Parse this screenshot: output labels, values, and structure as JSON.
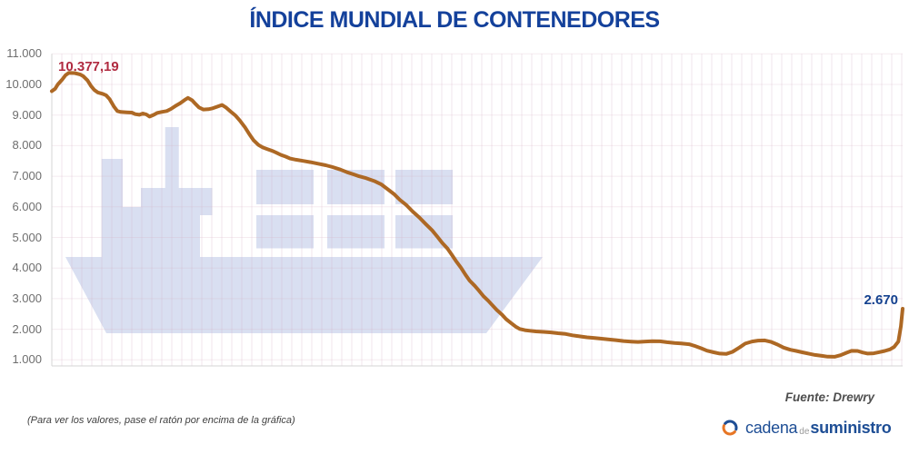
{
  "title": "ÍNDICE MUNDIAL DE CONTENEDORES",
  "annotations": {
    "peak": "10.377,19",
    "last": "2.670"
  },
  "footer": {
    "note": "(Para ver los valores, pase el ratón por encima de la gráfica)",
    "source": "Fuente: Drewry",
    "logo": {
      "part1": "cadena",
      "part2": "de",
      "part3": "suministro"
    }
  },
  "colors": {
    "title": "#14419b",
    "line": "#ad6824",
    "peak_label": "#b02a40",
    "last_label": "#14418f",
    "ship_watermark": "#d9dff1",
    "axis": "#d4d4d4",
    "y_tick_text": "#6e6e6e",
    "logo_blue": "#1e4e95",
    "logo_orange": "#e77625"
  },
  "chart_data": {
    "type": "line",
    "title": "ÍNDICE MUNDIAL DE CONTENEDORES",
    "xlabel": "",
    "ylabel": "",
    "x_tick_labels_visible": false,
    "y_ticks": [
      "11.000",
      "10.000",
      "9.000",
      "8.000",
      "7.000",
      "6.000",
      "5.000",
      "4.000",
      "3.000",
      "2.000",
      "1.000"
    ],
    "y_tick_values": [
      11000,
      10000,
      9000,
      8000,
      7000,
      6000,
      5000,
      4000,
      3000,
      2000,
      1000
    ],
    "ylim": [
      800,
      11000
    ],
    "grid": true,
    "legend": "none",
    "source": "Drewry",
    "peak_value": 10377.19,
    "last_value": 2670,
    "series": [
      {
        "name": "Índice mundial de contenedores",
        "points": [
          [
            0.0,
            9780
          ],
          [
            0.004,
            9860
          ],
          [
            0.007,
            10000
          ],
          [
            0.012,
            10150
          ],
          [
            0.016,
            10300
          ],
          [
            0.02,
            10377
          ],
          [
            0.027,
            10370
          ],
          [
            0.033,
            10330
          ],
          [
            0.037,
            10270
          ],
          [
            0.042,
            10130
          ],
          [
            0.046,
            9950
          ],
          [
            0.05,
            9820
          ],
          [
            0.054,
            9740
          ],
          [
            0.06,
            9690
          ],
          [
            0.064,
            9640
          ],
          [
            0.068,
            9520
          ],
          [
            0.073,
            9280
          ],
          [
            0.077,
            9130
          ],
          [
            0.081,
            9100
          ],
          [
            0.088,
            9090
          ],
          [
            0.094,
            9080
          ],
          [
            0.098,
            9030
          ],
          [
            0.103,
            9010
          ],
          [
            0.107,
            9050
          ],
          [
            0.111,
            9020
          ],
          [
            0.115,
            8950
          ],
          [
            0.12,
            9010
          ],
          [
            0.124,
            9070
          ],
          [
            0.129,
            9100
          ],
          [
            0.135,
            9130
          ],
          [
            0.14,
            9200
          ],
          [
            0.145,
            9290
          ],
          [
            0.151,
            9390
          ],
          [
            0.156,
            9490
          ],
          [
            0.16,
            9560
          ],
          [
            0.165,
            9480
          ],
          [
            0.169,
            9360
          ],
          [
            0.173,
            9250
          ],
          [
            0.178,
            9180
          ],
          [
            0.184,
            9190
          ],
          [
            0.189,
            9220
          ],
          [
            0.194,
            9270
          ],
          [
            0.2,
            9330
          ],
          [
            0.205,
            9240
          ],
          [
            0.21,
            9120
          ],
          [
            0.216,
            8980
          ],
          [
            0.221,
            8820
          ],
          [
            0.227,
            8600
          ],
          [
            0.232,
            8380
          ],
          [
            0.237,
            8180
          ],
          [
            0.243,
            8020
          ],
          [
            0.248,
            7940
          ],
          [
            0.253,
            7890
          ],
          [
            0.259,
            7830
          ],
          [
            0.264,
            7770
          ],
          [
            0.269,
            7700
          ],
          [
            0.275,
            7640
          ],
          [
            0.28,
            7580
          ],
          [
            0.287,
            7540
          ],
          [
            0.296,
            7500
          ],
          [
            0.304,
            7460
          ],
          [
            0.313,
            7410
          ],
          [
            0.322,
            7360
          ],
          [
            0.33,
            7300
          ],
          [
            0.339,
            7220
          ],
          [
            0.347,
            7130
          ],
          [
            0.355,
            7060
          ],
          [
            0.361,
            7000
          ],
          [
            0.368,
            6950
          ],
          [
            0.374,
            6890
          ],
          [
            0.38,
            6830
          ],
          [
            0.387,
            6740
          ],
          [
            0.394,
            6590
          ],
          [
            0.402,
            6420
          ],
          [
            0.409,
            6230
          ],
          [
            0.417,
            6050
          ],
          [
            0.424,
            5850
          ],
          [
            0.432,
            5650
          ],
          [
            0.439,
            5450
          ],
          [
            0.447,
            5230
          ],
          [
            0.453,
            5030
          ],
          [
            0.459,
            4820
          ],
          [
            0.465,
            4640
          ],
          [
            0.47,
            4440
          ],
          [
            0.475,
            4230
          ],
          [
            0.481,
            4010
          ],
          [
            0.486,
            3790
          ],
          [
            0.491,
            3590
          ],
          [
            0.497,
            3420
          ],
          [
            0.502,
            3260
          ],
          [
            0.507,
            3090
          ],
          [
            0.513,
            2930
          ],
          [
            0.518,
            2780
          ],
          [
            0.523,
            2630
          ],
          [
            0.529,
            2480
          ],
          [
            0.534,
            2330
          ],
          [
            0.54,
            2200
          ],
          [
            0.545,
            2090
          ],
          [
            0.55,
            2010
          ],
          [
            0.556,
            1970
          ],
          [
            0.562,
            1950
          ],
          [
            0.569,
            1930
          ],
          [
            0.578,
            1915
          ],
          [
            0.587,
            1895
          ],
          [
            0.595,
            1870
          ],
          [
            0.604,
            1845
          ],
          [
            0.612,
            1800
          ],
          [
            0.621,
            1765
          ],
          [
            0.629,
            1735
          ],
          [
            0.638,
            1715
          ],
          [
            0.646,
            1690
          ],
          [
            0.655,
            1665
          ],
          [
            0.663,
            1645
          ],
          [
            0.672,
            1615
          ],
          [
            0.681,
            1595
          ],
          [
            0.689,
            1585
          ],
          [
            0.698,
            1600
          ],
          [
            0.706,
            1610
          ],
          [
            0.715,
            1605
          ],
          [
            0.723,
            1575
          ],
          [
            0.732,
            1550
          ],
          [
            0.74,
            1535
          ],
          [
            0.749,
            1510
          ],
          [
            0.755,
            1460
          ],
          [
            0.763,
            1380
          ],
          [
            0.77,
            1300
          ],
          [
            0.778,
            1245
          ],
          [
            0.785,
            1205
          ],
          [
            0.793,
            1195
          ],
          [
            0.8,
            1260
          ],
          [
            0.808,
            1400
          ],
          [
            0.815,
            1530
          ],
          [
            0.823,
            1600
          ],
          [
            0.83,
            1630
          ],
          [
            0.838,
            1635
          ],
          [
            0.845,
            1590
          ],
          [
            0.853,
            1500
          ],
          [
            0.86,
            1400
          ],
          [
            0.868,
            1330
          ],
          [
            0.875,
            1290
          ],
          [
            0.882,
            1245
          ],
          [
            0.89,
            1200
          ],
          [
            0.897,
            1160
          ],
          [
            0.905,
            1130
          ],
          [
            0.912,
            1105
          ],
          [
            0.92,
            1100
          ],
          [
            0.927,
            1150
          ],
          [
            0.934,
            1230
          ],
          [
            0.94,
            1295
          ],
          [
            0.947,
            1290
          ],
          [
            0.953,
            1240
          ],
          [
            0.959,
            1205
          ],
          [
            0.966,
            1215
          ],
          [
            0.972,
            1250
          ],
          [
            0.979,
            1290
          ],
          [
            0.985,
            1340
          ],
          [
            0.99,
            1420
          ],
          [
            0.995,
            1600
          ],
          [
            0.998,
            2100
          ],
          [
            1.0,
            2670
          ]
        ]
      }
    ]
  }
}
